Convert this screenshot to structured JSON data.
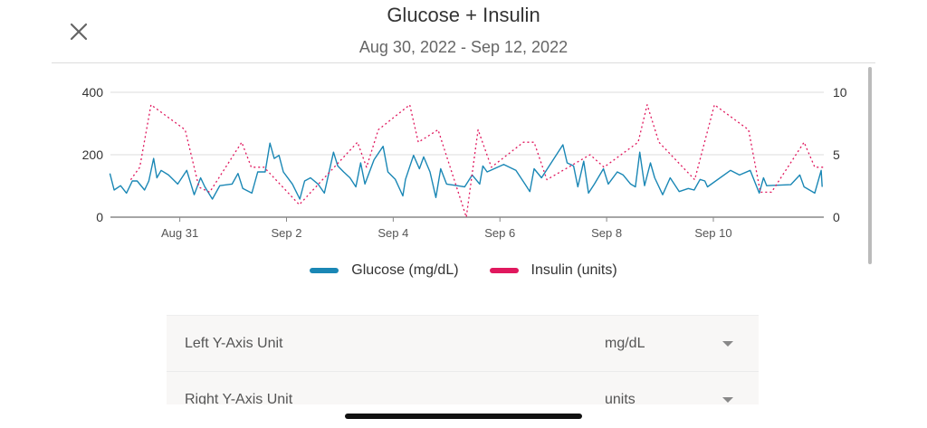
{
  "header": {
    "title": "Glucose + Insulin",
    "date_range": "Aug 30, 2022 - Sep 12, 2022"
  },
  "colors": {
    "glucose": "#1a87b5",
    "insulin": "#e0185e"
  },
  "chart_data": {
    "type": "line",
    "title": "Glucose + Insulin",
    "x_unit": "days since Aug 30, 2022",
    "xlim": [
      -0.3,
      13.07
    ],
    "x_ticks": [
      {
        "day": 1,
        "label": "Aug 31"
      },
      {
        "day": 3,
        "label": "Sep 2"
      },
      {
        "day": 5,
        "label": "Sep 4"
      },
      {
        "day": 7,
        "label": "Sep 6"
      },
      {
        "day": 9,
        "label": "Sep 8"
      },
      {
        "day": 11,
        "label": "Sep 10"
      }
    ],
    "left_axis": {
      "ylim": [
        0,
        400
      ],
      "ticks": [
        "0",
        "200",
        "400"
      ],
      "unit": "mg/dL"
    },
    "right_axis": {
      "ylim": [
        0,
        10
      ],
      "ticks": [
        "0",
        "5",
        "10"
      ],
      "unit": "units"
    },
    "grid": true,
    "legend_position": "bottom",
    "series": [
      {
        "name": "Glucose (mg/dL)",
        "axis": "left",
        "style": "solid",
        "x": [
          -0.31,
          -0.23,
          -0.11,
          0.0,
          0.11,
          0.2,
          0.34,
          0.42,
          0.51,
          0.57,
          0.65,
          0.79,
          0.96,
          1.13,
          1.27,
          1.39,
          1.47,
          1.61,
          1.75,
          1.98,
          2.09,
          2.18,
          2.35,
          2.46,
          2.6,
          2.69,
          2.77,
          2.86,
          2.94,
          3.11,
          3.25,
          3.34,
          3.45,
          3.59,
          3.71,
          3.88,
          3.96,
          4.07,
          4.19,
          4.3,
          4.39,
          4.47,
          4.64,
          4.81,
          4.9,
          5.04,
          5.18,
          5.23,
          5.38,
          5.49,
          5.57,
          5.69,
          5.8,
          5.89,
          6.0,
          6.2,
          6.34,
          6.48,
          6.62,
          6.68,
          6.76,
          7.07,
          7.3,
          7.47,
          7.56,
          7.64,
          7.78,
          8.18,
          8.26,
          8.38,
          8.46,
          8.57,
          8.66,
          8.77,
          8.94,
          9.03,
          9.2,
          9.31,
          9.45,
          9.54,
          9.62,
          9.71,
          9.82,
          9.9,
          10.05,
          10.19,
          10.36,
          10.53,
          10.64,
          10.75,
          10.84,
          10.89,
          11.32,
          11.49,
          11.69,
          11.86,
          11.94,
          12.0,
          12.45,
          12.62,
          12.7,
          12.9,
          13.02,
          13.04
        ],
        "y": [
          140,
          87,
          101,
          77,
          116,
          116,
          87,
          116,
          188,
          126,
          150,
          135,
          106,
          150,
          72,
          126,
          97,
          58,
          101,
          106,
          140,
          92,
          77,
          145,
          145,
          237,
          188,
          198,
          145,
          106,
          58,
          116,
          126,
          106,
          77,
          208,
          164,
          145,
          126,
          97,
          174,
          106,
          184,
          227,
          145,
          121,
          68,
          121,
          198,
          155,
          193,
          145,
          63,
          155,
          106,
          101,
          97,
          135,
          106,
          164,
          145,
          169,
          150,
          106,
          82,
          155,
          126,
          232,
          174,
          164,
          97,
          179,
          77,
          106,
          155,
          106,
          145,
          135,
          106,
          97,
          208,
          101,
          174,
          126,
          72,
          126,
          82,
          92,
          87,
          121,
          116,
          97,
          150,
          135,
          150,
          77,
          126,
          101,
          104,
          135,
          97,
          77,
          150,
          97
        ]
      },
      {
        "name": "Insulin (units)",
        "axis": "right",
        "style": "dotted",
        "x": [
          0.08,
          0.25,
          0.46,
          1.1,
          1.36,
          1.56,
          2.16,
          2.34,
          2.58,
          3.24,
          4.33,
          4.5,
          4.72,
          5.31,
          5.47,
          5.84,
          6.37,
          6.59,
          6.84,
          7.44,
          7.64,
          7.88,
          8.69,
          8.95,
          9.59,
          9.76,
          9.98,
          10.65,
          11.02,
          11.66,
          11.88,
          12.09,
          12.7,
          12.9,
          13.07
        ],
        "y": [
          3,
          4,
          9,
          7,
          2.4,
          2,
          6,
          4,
          4,
          1,
          6,
          4,
          7,
          9,
          6,
          7,
          0,
          7,
          4,
          6,
          6,
          3,
          5,
          4,
          6,
          9,
          6,
          3,
          9,
          7,
          2,
          2,
          6,
          4,
          4
        ]
      }
    ]
  },
  "legend": {
    "glucose": "Glucose (mg/dL)",
    "insulin": "Insulin (units)"
  },
  "settings": {
    "left_axis_label": "Left Y-Axis Unit",
    "left_axis_value": "mg/dL",
    "right_axis_label": "Right Y-Axis Unit",
    "right_axis_value": "units"
  }
}
